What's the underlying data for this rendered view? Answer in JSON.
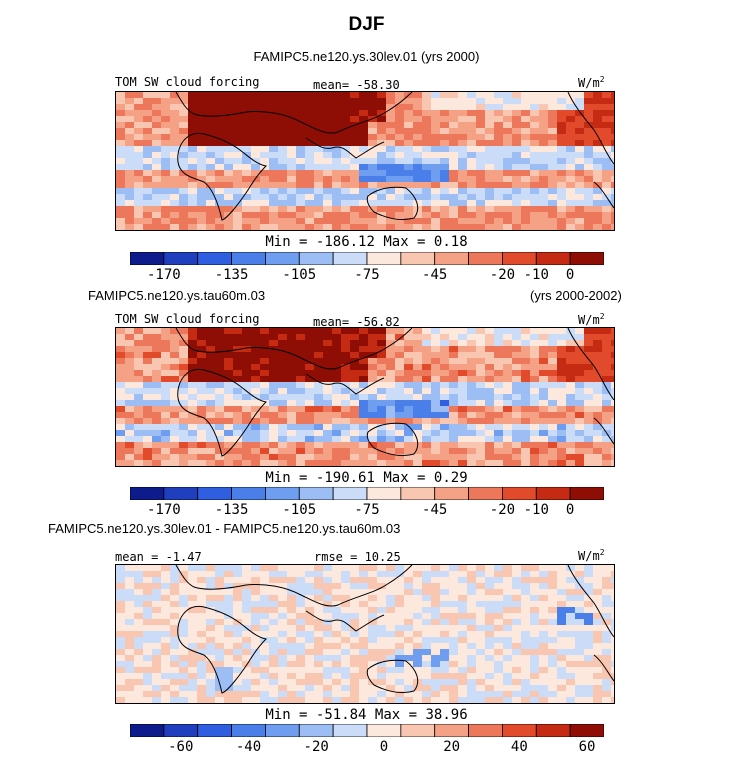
{
  "title": "DJF",
  "units": "W/m",
  "units_exp": "2",
  "palette": [
    "#0d1b8c",
    "#1f3fbe",
    "#2f5fe0",
    "#4a7fea",
    "#6f9ef0",
    "#9dbef4",
    "#cadcf7",
    "#fde8dd",
    "#f9c7b1",
    "#f4a186",
    "#ec775a",
    "#e24a2c",
    "#c52a12",
    "#8e0e05"
  ],
  "chart_data": [
    {
      "type": "heatmap",
      "case_title": "FAMIPC5.ne120.ys.30lev.01 (yrs 2000)",
      "case_title_right": "",
      "variable": "TOM SW cloud forcing",
      "mean_label": "mean= -58.30",
      "rmse_label": "",
      "minmax_label": "Min = -186.12 Max =   0.18",
      "min": -186.12,
      "max": 0.18,
      "mean": -58.3,
      "colorbar_ticks": [
        "-170",
        "-135",
        "-105",
        "-75",
        "-45",
        "-20",
        "-10",
        "0"
      ]
    },
    {
      "type": "heatmap",
      "case_title": "FAMIPC5.ne120.ys.tau60m.03",
      "case_title_right": "(yrs 2000-2002)",
      "variable": "TOM SW cloud forcing",
      "mean_label": "mean= -56.82",
      "rmse_label": "",
      "minmax_label": "Min = -190.61 Max =   0.29",
      "min": -190.61,
      "max": 0.29,
      "mean": -56.82,
      "colorbar_ticks": [
        "-170",
        "-135",
        "-105",
        "-75",
        "-45",
        "-20",
        "-10",
        "0"
      ]
    },
    {
      "type": "heatmap",
      "case_title": "FAMIPC5.ne120.ys.30lev.01 - FAMIPC5.ne120.ys.tau60m.03",
      "case_title_right": "",
      "variable": "",
      "mean_label": "mean = -1.47",
      "rmse_label": "rmse =  10.25",
      "minmax_label": "Min = -51.84 Max =  38.96",
      "min": -51.84,
      "max": 38.96,
      "mean": -1.47,
      "rmse": 10.25,
      "colorbar_ticks": [
        "-60",
        "-40",
        "-20",
        "0",
        "20",
        "40",
        "60"
      ]
    }
  ]
}
